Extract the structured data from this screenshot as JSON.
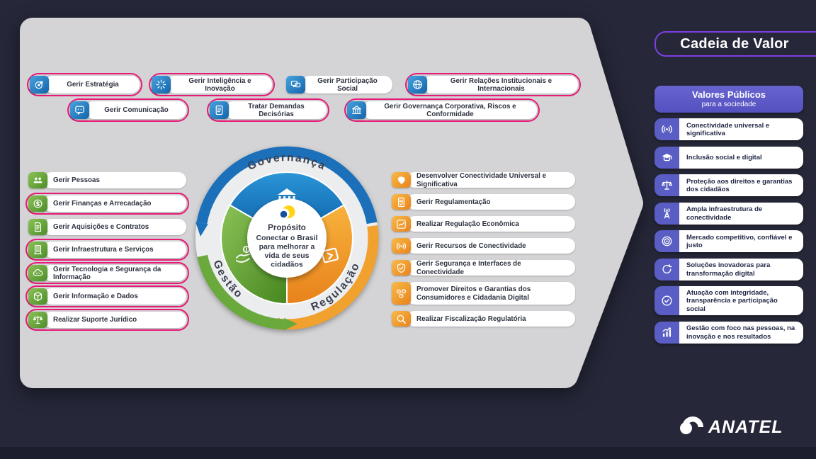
{
  "header": {
    "title": "Cadeia de Valor"
  },
  "strategic_processes_row1": [
    {
      "label": "Gerir Estratégia",
      "icon": "target",
      "highlighted": true
    },
    {
      "label": "Gerir Inteligência e Inovação",
      "icon": "innovation",
      "highlighted": true
    },
    {
      "label": "Gerir Participação Social",
      "icon": "social-chat",
      "highlighted": false
    },
    {
      "label": "Gerir Relações Institucionais e Internacionais",
      "icon": "globe",
      "highlighted": true
    }
  ],
  "strategic_processes_row2": [
    {
      "label": "Gerir Comunicação",
      "icon": "chat",
      "highlighted": true
    },
    {
      "label": "Tratar Demandas Decisórias",
      "icon": "document",
      "highlighted": true
    },
    {
      "label": "Gerir Governança Corporativa, Riscos e Conformidade",
      "icon": "bank",
      "highlighted": true
    }
  ],
  "management_processes": [
    {
      "label": "Gerir Pessoas",
      "icon": "people",
      "highlighted": false
    },
    {
      "label": "Gerir Finanças e Arrecadação",
      "icon": "coin",
      "highlighted": true
    },
    {
      "label": "Gerir Aquisições e Contratos",
      "icon": "contract",
      "highlighted": false
    },
    {
      "label": "Gerir Infraestrutura e Serviços",
      "icon": "building",
      "highlighted": true
    },
    {
      "label": "Gerir Tecnologia e Segurança da Informação",
      "icon": "cloud",
      "highlighted": true
    },
    {
      "label": "Gerir Informação e Dados",
      "icon": "cube",
      "highlighted": true
    },
    {
      "label": "Realizar Suporte Jurídico",
      "icon": "scales",
      "highlighted": true
    }
  ],
  "regulatory_processes": [
    {
      "label": "Desenvolver Conectividade Universal e Significativa",
      "icon": "map-brazil",
      "highlighted": false
    },
    {
      "label": "Gerir Regulamentação",
      "icon": "doc-check",
      "highlighted": false
    },
    {
      "label": "Realizar Regulação Econômica",
      "icon": "chart-line",
      "highlighted": false
    },
    {
      "label": "Gerir Recursos de Conectividade",
      "icon": "broadcast",
      "highlighted": false
    },
    {
      "label": "Gerir Segurança e Interfaces de Conectividade",
      "icon": "shield-check",
      "highlighted": false
    },
    {
      "label": "Promover Direitos e Garantias dos Consumidores e Cidadania Digital",
      "icon": "consumers",
      "highlighted": false
    },
    {
      "label": "Realizar Fiscalização Regulatória",
      "icon": "magnifier",
      "highlighted": false
    }
  ],
  "cycle": {
    "segments": [
      {
        "label": "Governança",
        "icon": "bank",
        "color": "#1c70ba"
      },
      {
        "label": "Gestão",
        "icon": "hand-coin",
        "color": "#6aa93c"
      },
      {
        "label": "Regulação",
        "icon": "doc-send",
        "color": "#f0a12e"
      }
    ],
    "purpose": {
      "title": "Propósito",
      "lines": [
        "Conectar o Brasil",
        "para melhorar a",
        "vida de seus",
        "cidadãos"
      ]
    }
  },
  "sidebar": {
    "values_header": {
      "line1": "Valores Públicos",
      "line2": "para a sociedade"
    },
    "items": [
      {
        "label": "Conectividade universal e significativa",
        "icon": "broadcast"
      },
      {
        "label": "Inclusão social e digital",
        "icon": "graduation-cap"
      },
      {
        "label": "Proteção aos direitos e garantias dos cidadãos",
        "icon": "scales"
      },
      {
        "label": "Ampla infraestrutura de conectividade",
        "icon": "tower"
      },
      {
        "label": "Mercado competitivo, confiável e justo",
        "icon": "market-target"
      },
      {
        "label": "Soluções inovadoras para transformação digital",
        "icon": "refresh"
      },
      {
        "label": "Atuação com integridade, transparência e participação social",
        "icon": "check-circle"
      },
      {
        "label": "Gestão com foco nas pessoas, na inovação e nos resultados",
        "icon": "bar-chart"
      }
    ]
  },
  "footer": {
    "logo_text": "ANATEL"
  },
  "colors": {
    "background": "#262739",
    "panel": "#d4d4d6",
    "highlight_border": "#e81a77",
    "blue_icon": "#1f76bb",
    "green_icon": "#5d9a31",
    "orange_icon": "#ee8f23",
    "sidebar_icon": "#5a5ec4",
    "values_button": "#5d58c8",
    "title_border": "#7c3fe1"
  }
}
